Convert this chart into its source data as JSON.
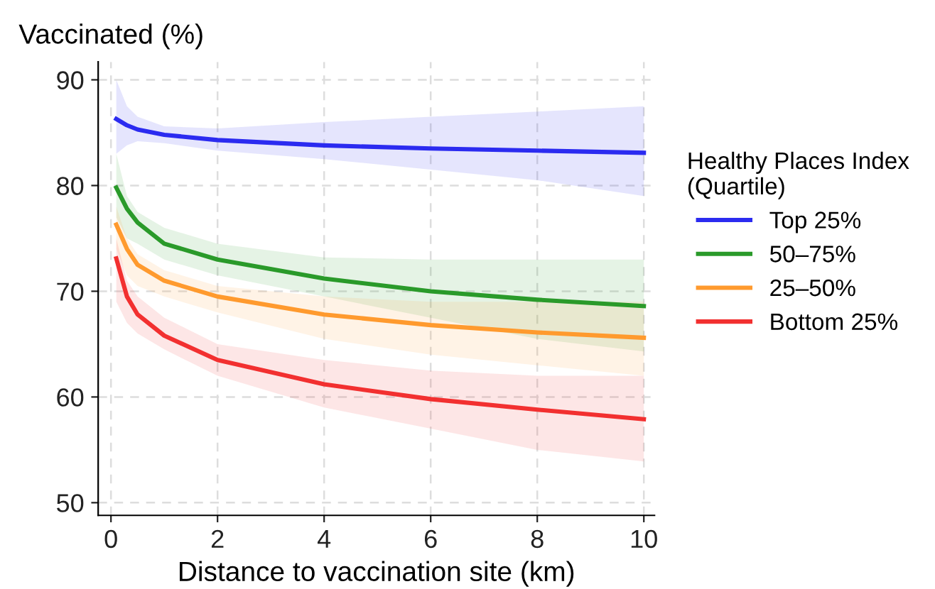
{
  "chart_data": {
    "type": "line",
    "ylabel": "Vaccinated (%)",
    "xlabel": "Distance to vaccination site (km)",
    "legend_title": "Healthy Places Index\n(Quartile)",
    "xlim": [
      -0.24,
      10.2
    ],
    "ylim": [
      48.8,
      91.7
    ],
    "xticks": [
      0,
      2,
      4,
      6,
      8,
      10
    ],
    "yticks": [
      50,
      60,
      70,
      80,
      90
    ],
    "grid": true,
    "legend": "right",
    "marker": "none",
    "line_style": "solid",
    "x": [
      0.1,
      0.3,
      0.5,
      1,
      2,
      4,
      6,
      8,
      10
    ],
    "series": [
      {
        "name": "Top 25%",
        "color": "#2b2bf0",
        "values": [
          86.3,
          85.7,
          85.3,
          84.8,
          84.3,
          83.8,
          83.5,
          83.3,
          83.1
        ],
        "upper": [
          90,
          87.5,
          86.5,
          85.6,
          85.4,
          86,
          86.5,
          87,
          87.5
        ],
        "lower": [
          83,
          83.8,
          84.2,
          84.0,
          83.3,
          82.5,
          81.5,
          80.5,
          79
        ]
      },
      {
        "name": "50–75%",
        "color": "#2a9a2a",
        "values": [
          79.8,
          77.8,
          76.5,
          74.5,
          73,
          71.2,
          70,
          69.2,
          68.6
        ],
        "upper": [
          83,
          79,
          77.5,
          76,
          74.5,
          73.2,
          73,
          73,
          73
        ],
        "lower": [
          77,
          75,
          74.5,
          73,
          71.5,
          69.5,
          67.5,
          65.5,
          64.3
        ]
      },
      {
        "name": "25–50%",
        "color": "#ff9a2e",
        "values": [
          76.3,
          74,
          72.5,
          71,
          69.5,
          67.8,
          66.8,
          66.1,
          65.6
        ],
        "upper": [
          78,
          75,
          73.5,
          72,
          70.5,
          69.5,
          69,
          69,
          69
        ],
        "lower": [
          74,
          71.5,
          70.5,
          69.5,
          68,
          65.5,
          64,
          63,
          62
        ]
      },
      {
        "name": "Bottom 25%",
        "color": "#f23030",
        "values": [
          73.1,
          69.5,
          67.8,
          65.8,
          63.5,
          61.2,
          59.8,
          58.8,
          57.9
        ],
        "upper": [
          75,
          71,
          69.5,
          67.5,
          65,
          63.5,
          62.5,
          62,
          62
        ],
        "lower": [
          69,
          67,
          66,
          64.5,
          62,
          59,
          57,
          55,
          53.9
        ]
      }
    ]
  }
}
